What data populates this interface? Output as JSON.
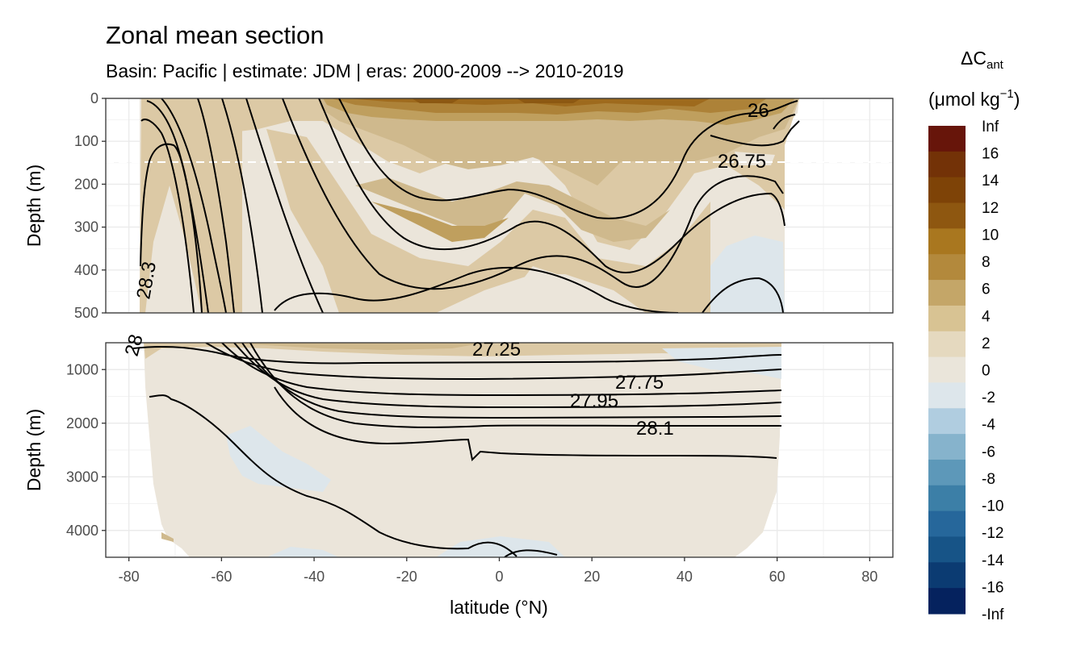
{
  "title": "Zonal mean section",
  "subtitle": "Basin: Pacific | estimate: JDM  | eras: 2000-2009 --> 2010-2019",
  "chart_data": {
    "type": "contour-section",
    "title": "Zonal mean section",
    "subtitle": "Basin: Pacific | estimate: JDM  | eras: 2000-2009 --> 2010-2019",
    "xlabel": "latitude (°N)",
    "xlim": [
      -85,
      85
    ],
    "x_ticks": [
      -80,
      -60,
      -40,
      -20,
      0,
      20,
      40,
      60,
      80
    ],
    "x_tick_labels": [
      "-80",
      "-60",
      "-40",
      "-20",
      "0",
      "20",
      "40",
      "60",
      "80"
    ],
    "panels": [
      {
        "name": "upper",
        "ylabel": "Depth (m)",
        "ylim": [
          0,
          500
        ],
        "y_ticks": [
          0,
          100,
          200,
          300,
          400,
          500
        ],
        "y_tick_labels": [
          "0",
          "100",
          "200",
          "300",
          "400",
          "500"
        ],
        "dashed_reference_depth": 150,
        "contour_labels": [
          "26",
          "26.75",
          "28.3"
        ]
      },
      {
        "name": "lower",
        "ylabel": "Depth (m)",
        "ylim": [
          500,
          4500
        ],
        "y_ticks": [
          1000,
          2000,
          3000,
          4000
        ],
        "y_tick_labels": [
          "1000",
          "2000",
          "3000",
          "4000"
        ],
        "contour_labels": [
          "27.25",
          "27.75",
          "27.95",
          "28.1",
          "28"
        ]
      }
    ],
    "legend": {
      "title": "ΔC",
      "title_subscript": "ant",
      "unit": "(μmol kg",
      "unit_superscript": "−1",
      "unit_close": ")",
      "position": "right",
      "breaks": [
        "Inf",
        "16",
        "14",
        "12",
        "10",
        "8",
        "6",
        "4",
        "2",
        "0",
        "-2",
        "-4",
        "-6",
        "-8",
        "-10",
        "-12",
        "-14",
        "-16",
        "-Inf"
      ],
      "colors": [
        "#67150a",
        "#733207",
        "#7e4307",
        "#8e5710",
        "#a9771f",
        "#b3893c",
        "#c4a668",
        "#d8c393",
        "#e5d9bf",
        "#eae5da",
        "#dde6eb",
        "#b0cde0",
        "#86b3cc",
        "#5d98b9",
        "#3c7fa7",
        "#26679b",
        "#175487",
        "#0b3b72",
        "#05225e"
      ]
    },
    "palette": {
      "land_white": "#ffffff",
      "c_0_2": "#ebe5da",
      "c_2_4": "#dcc9a5",
      "c_4_6": "#cfb98d",
      "c_6_8": "#bf9f5e",
      "c_8_10": "#ad8238",
      "c_10_12": "#9e6a1d",
      "c_12_14": "#8c5812",
      "c_neg": "#dde6eb"
    },
    "isopycnals_upper_colour": "#000000"
  }
}
